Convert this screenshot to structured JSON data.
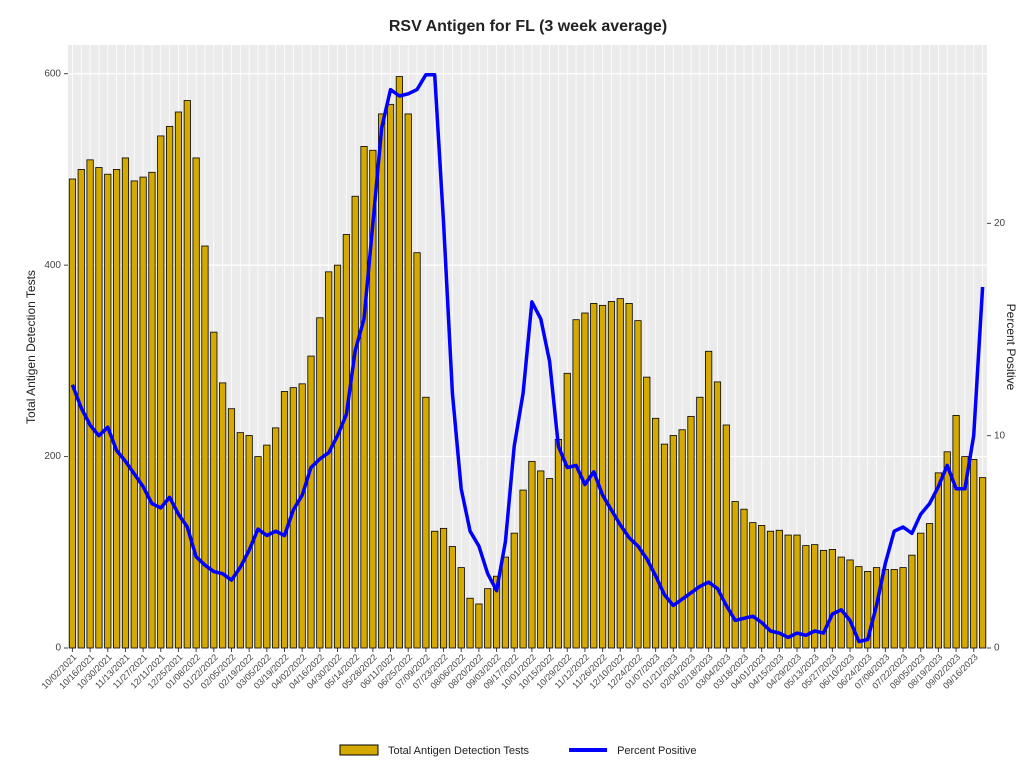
{
  "chart_data": {
    "type": "bar",
    "title": "RSV Antigen for FL (3 week average)",
    "y_label": "Total Antigen Detection Tests",
    "y2_label": "Percent Positive",
    "categories": [
      "10/02/2021",
      null,
      "10/16/2021",
      null,
      "10/30/2021",
      null,
      "11/13/2021",
      null,
      "11/27/2021",
      null,
      "12/11/2021",
      null,
      "12/25/2021",
      null,
      "01/08/2022",
      null,
      "01/22/2022",
      null,
      "02/05/2022",
      null,
      "02/19/2022",
      null,
      "03/05/2022",
      null,
      "03/19/2022",
      null,
      "04/02/2022",
      null,
      "04/16/2022",
      null,
      "04/30/2022",
      null,
      "05/14/2022",
      null,
      "05/28/2022",
      null,
      "06/11/2022",
      null,
      "06/25/2022",
      null,
      "07/09/2022",
      null,
      "07/23/2022",
      null,
      "08/06/2022",
      null,
      "08/20/2022",
      null,
      "09/03/2022",
      null,
      "09/17/2022",
      null,
      "10/01/2022",
      null,
      "10/15/2022",
      null,
      "10/29/2022",
      null,
      "11/12/2022",
      null,
      "11/26/2022",
      null,
      "12/10/2022",
      null,
      "12/24/2022",
      null,
      "01/07/2023",
      null,
      "01/21/2023",
      null,
      "02/04/2023",
      null,
      "02/18/2023",
      null,
      "03/04/2023",
      null,
      "03/18/2023",
      null,
      "04/01/2023",
      null,
      "04/15/2023",
      null,
      "04/29/2023",
      null,
      "05/13/2023",
      null,
      "05/27/2023",
      null,
      "06/10/2023",
      null,
      "06/24/2023",
      null,
      "07/08/2023",
      null,
      "07/22/2023",
      null,
      "08/05/2023",
      null,
      "08/19/2023",
      null,
      "09/02/2023",
      null,
      "09/16/2023",
      null
    ],
    "series": [
      {
        "name": "Total Antigen Detection Tests",
        "type": "bar",
        "color": "#d4a900",
        "values": [
          490,
          500,
          510,
          502,
          495,
          500,
          512,
          488,
          492,
          497,
          535,
          545,
          560,
          572,
          512,
          420,
          330,
          277,
          250,
          225,
          222,
          200,
          212,
          230,
          268,
          272,
          276,
          305,
          345,
          393,
          400,
          432,
          472,
          524,
          520,
          558,
          568,
          597,
          558,
          413,
          262,
          122,
          125,
          106,
          84,
          52,
          46,
          62,
          75,
          95,
          120,
          165,
          195,
          185,
          177,
          218,
          287,
          343,
          350,
          360,
          358,
          362,
          365,
          360,
          342,
          283,
          240,
          213,
          222,
          228,
          242,
          262,
          310,
          278,
          233,
          153,
          145,
          131,
          128,
          122,
          123,
          118,
          118,
          107,
          108,
          102,
          103,
          95,
          92,
          85,
          80,
          84,
          82,
          82,
          84,
          97,
          120,
          130,
          183,
          205,
          243,
          200,
          197,
          178
        ]
      },
      {
        "name": "Percent Positive",
        "type": "line",
        "axis": "y2",
        "color": "#0000ff",
        "values": [
          12.4,
          11.3,
          10.5,
          10.0,
          10.4,
          9.3,
          8.8,
          8.2,
          7.6,
          6.8,
          6.6,
          7.1,
          6.3,
          5.7,
          4.3,
          3.9,
          3.6,
          3.5,
          3.2,
          3.8,
          4.6,
          5.6,
          5.3,
          5.5,
          5.3,
          6.5,
          7.2,
          8.5,
          8.9,
          9.2,
          10.0,
          11.0,
          14.0,
          15.5,
          20.0,
          24.5,
          26.3,
          26.0,
          26.1,
          26.3,
          27.0,
          27.0,
          20.0,
          12.0,
          7.5,
          5.5,
          4.8,
          3.5,
          2.7,
          5.0,
          9.5,
          12.0,
          16.3,
          15.5,
          13.5,
          9.5,
          8.5,
          8.6,
          7.7,
          8.3,
          7.2,
          6.5,
          5.8,
          5.2,
          4.8,
          4.2,
          3.4,
          2.5,
          2.0,
          2.3,
          2.6,
          2.9,
          3.1,
          2.8,
          2.0,
          1.3,
          1.4,
          1.5,
          1.2,
          0.8,
          0.7,
          0.5,
          0.7,
          0.6,
          0.8,
          0.7,
          1.6,
          1.8,
          1.3,
          0.3,
          0.4,
          2.0,
          4.0,
          5.5,
          5.7,
          5.4,
          6.3,
          6.8,
          7.6,
          8.6,
          7.5,
          7.5,
          10.0,
          17.0
        ]
      }
    ],
    "ylim": [
      0,
      630
    ],
    "yticks": [
      0,
      200,
      400,
      600
    ],
    "y2lim": [
      0,
      28.4
    ],
    "y2ticks": [
      0,
      10,
      20
    ],
    "grid": true
  }
}
